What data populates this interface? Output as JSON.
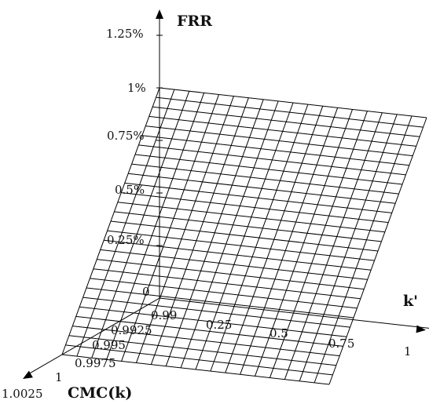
{
  "chart_data": {
    "type": "surface",
    "axes": {
      "x": {
        "label": "k'",
        "range": [
          0.99,
          1
        ],
        "ticks": [
          "0.99",
          "0.25",
          "0.5",
          "0.75",
          "1"
        ]
      },
      "y": {
        "label": "CMC(k)",
        "range": [
          0.99,
          1.0025
        ],
        "ticks": [
          "0.9925",
          "0.995",
          "0.9975",
          "1",
          "1.0025"
        ]
      },
      "z": {
        "label": "FRR",
        "range": [
          0,
          1.25
        ],
        "ticks": [
          "0",
          "0.25%",
          "0.5%",
          "0.75%",
          "1%",
          "1.25%"
        ]
      }
    },
    "surface": {
      "corners": [
        {
          "k_prime": 0.99,
          "cmc": 0.99,
          "frr_percent": 1.0
        },
        {
          "k_prime": 1,
          "cmc": 0.99,
          "frr_percent": 1.0
        },
        {
          "k_prime": 0.99,
          "cmc": 1,
          "frr_percent": 0
        },
        {
          "k_prime": 1,
          "cmc": 1,
          "frr_percent": 0
        }
      ],
      "grid_columns": 18,
      "grid_rows": 28,
      "color": "#000000"
    },
    "grid": true
  }
}
